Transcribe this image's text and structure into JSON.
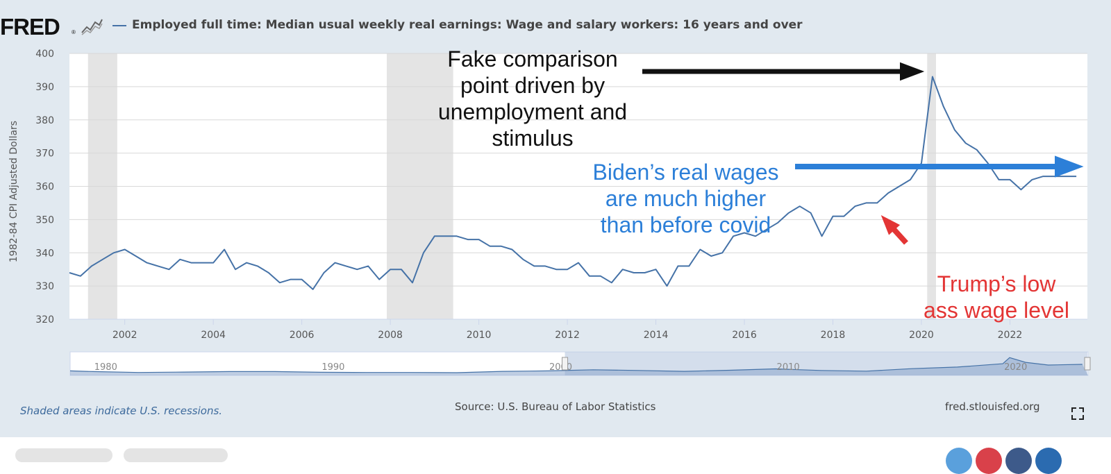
{
  "header": {
    "logo": "FRED",
    "logo_reg": "®",
    "series_title": "Employed full time: Median usual weekly real earnings: Wage and salary workers: 16 years and over"
  },
  "footer": {
    "note": "Shaded areas indicate U.S. recessions.",
    "source": "Source: U.S. Bureau of Labor Statistics",
    "site": "fred.stlouisfed.org"
  },
  "annotations": {
    "fake_comparison": "Fake comparison point driven by unemployment and stimulus",
    "biden": "Biden’s real wages are much higher than before covid",
    "trump": "Trump’s low ass wage level"
  },
  "colors": {
    "series": "#4572a7",
    "black_arrow": "#111111",
    "blue_arrow": "#2c7fd8",
    "red_arrow": "#e33535",
    "recession": "#e4e4e4"
  },
  "chart_data": {
    "type": "line",
    "title": "Employed full time: Median usual weekly real earnings: Wage and salary workers: 16 years and over",
    "ylabel": "1982-84 CPI Adjusted Dollars",
    "xlabel": "",
    "ylim": [
      320,
      400
    ],
    "xlim": [
      2000.75,
      2023.75
    ],
    "yticks": [
      320,
      330,
      340,
      350,
      360,
      370,
      380,
      390,
      400
    ],
    "xticks": [
      "2002",
      "2004",
      "2006",
      "2008",
      "2010",
      "2012",
      "2014",
      "2016",
      "2018",
      "2020",
      "2022"
    ],
    "grid": true,
    "recessions": [
      [
        2001.17,
        2001.83
      ],
      [
        2007.92,
        2009.42
      ],
      [
        2020.13,
        2020.33
      ]
    ],
    "series": [
      {
        "x": [
          2000.75,
          2001.0,
          2001.25,
          2001.5,
          2001.75,
          2002.0,
          2002.25,
          2002.5,
          2002.75,
          2003.0,
          2003.25,
          2003.5,
          2003.75,
          2004.0,
          2004.25,
          2004.5,
          2004.75,
          2005.0,
          2005.25,
          2005.5,
          2005.75,
          2006.0,
          2006.25,
          2006.5,
          2006.75,
          2007.0,
          2007.25,
          2007.5,
          2007.75,
          2008.0,
          2008.25,
          2008.5,
          2008.75,
          2009.0,
          2009.25,
          2009.5,
          2009.75,
          2010.0,
          2010.25,
          2010.5,
          2010.75,
          2011.0,
          2011.25,
          2011.5,
          2011.75,
          2012.0,
          2012.25,
          2012.5,
          2012.75,
          2013.0,
          2013.25,
          2013.5,
          2013.75,
          2014.0,
          2014.25,
          2014.5,
          2014.75,
          2015.0,
          2015.25,
          2015.5,
          2015.75,
          2016.0,
          2016.25,
          2016.5,
          2016.75,
          2017.0,
          2017.25,
          2017.5,
          2017.75,
          2018.0,
          2018.25,
          2018.5,
          2018.75,
          2019.0,
          2019.25,
          2019.5,
          2019.75,
          2020.0,
          2020.25,
          2020.5,
          2020.75,
          2021.0,
          2021.25,
          2021.5,
          2021.75,
          2022.0,
          2022.25,
          2022.5,
          2022.75,
          2023.0,
          2023.25,
          2023.5
        ],
        "values": [
          334,
          333,
          336,
          338,
          340,
          341,
          339,
          337,
          336,
          335,
          338,
          337,
          337,
          337,
          341,
          335,
          337,
          336,
          334,
          331,
          332,
          332,
          329,
          334,
          337,
          336,
          335,
          336,
          332,
          335,
          335,
          331,
          340,
          345,
          345,
          345,
          344,
          344,
          342,
          342,
          341,
          338,
          336,
          336,
          335,
          335,
          337,
          333,
          333,
          331,
          335,
          334,
          334,
          335,
          330,
          336,
          336,
          341,
          339,
          340,
          345,
          346,
          345,
          347,
          349,
          352,
          354,
          352,
          345,
          351,
          351,
          354,
          355,
          355,
          358,
          360,
          362,
          367,
          393,
          384,
          377,
          373,
          371,
          367,
          362,
          362,
          359,
          362,
          363,
          363,
          363,
          363
        ]
      }
    ]
  },
  "navigator": {
    "labels": [
      "1980",
      "1990",
      "2000",
      "2010",
      "2020"
    ]
  }
}
